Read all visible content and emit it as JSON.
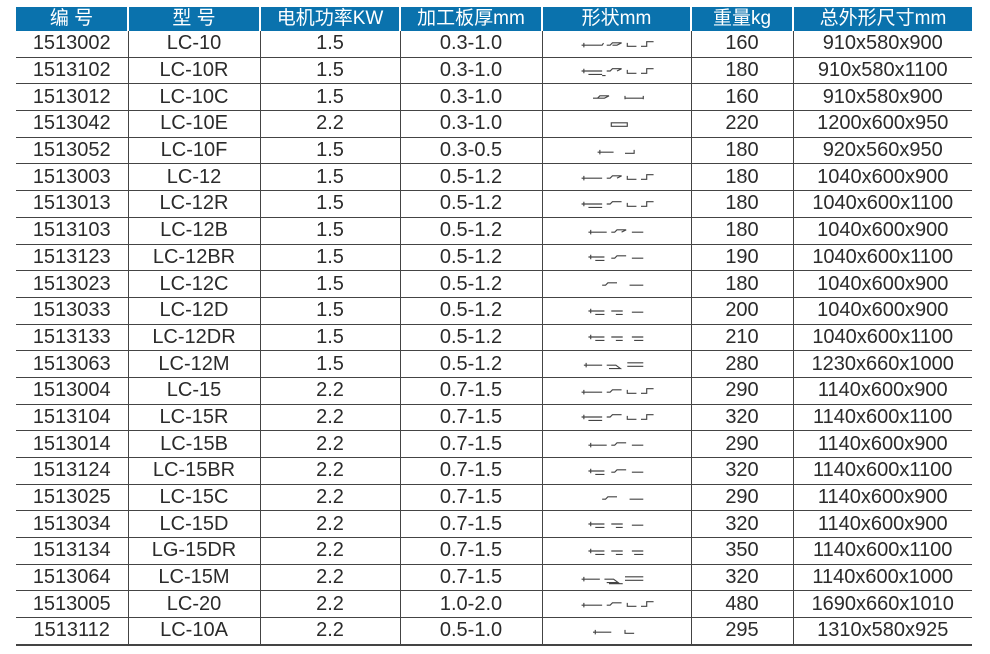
{
  "header_color": "#0a72ad",
  "columns": [
    "编 号",
    "型 号",
    "电机功率KW",
    "加工板厚mm",
    "形状mm",
    "重量kg",
    "总外形尺寸mm"
  ],
  "rows": [
    {
      "code": "1513002",
      "model": "LC-10",
      "power": "1.5",
      "thickness": "0.3-1.0",
      "shape": "profile-shapes-icon",
      "weight": "160",
      "size": "910x580x900"
    },
    {
      "code": "1513102",
      "model": "LC-10R",
      "power": "1.5",
      "thickness": "0.3-1.0",
      "shape": "profile-shapes-icon",
      "weight": "180",
      "size": "910x580x1100"
    },
    {
      "code": "1513012",
      "model": "LC-10C",
      "power": "1.5",
      "thickness": "0.3-1.0",
      "shape": "profile-shapes-icon",
      "weight": "160",
      "size": "910x580x900"
    },
    {
      "code": "1513042",
      "model": "LC-10E",
      "power": "2.2",
      "thickness": "0.3-1.0",
      "shape": "profile-shapes-icon",
      "weight": "220",
      "size": "1200x600x950"
    },
    {
      "code": "1513052",
      "model": "LC-10F",
      "power": "1.5",
      "thickness": "0.3-0.5",
      "shape": "profile-shapes-icon",
      "weight": "180",
      "size": "920x560x950"
    },
    {
      "code": "1513003",
      "model": "LC-12",
      "power": "1.5",
      "thickness": "0.5-1.2",
      "shape": "profile-shapes-icon",
      "weight": "180",
      "size": "1040x600x900"
    },
    {
      "code": "1513013",
      "model": "LC-12R",
      "power": "1.5",
      "thickness": "0.5-1.2",
      "shape": "profile-shapes-icon",
      "weight": "180",
      "size": "1040x600x1100"
    },
    {
      "code": "1513103",
      "model": "LC-12B",
      "power": "1.5",
      "thickness": "0.5-1.2",
      "shape": "profile-shapes-icon",
      "weight": "180",
      "size": "1040x600x900"
    },
    {
      "code": "1513123",
      "model": "LC-12BR",
      "power": "1.5",
      "thickness": "0.5-1.2",
      "shape": "profile-shapes-icon",
      "weight": "190",
      "size": "1040x600x1100"
    },
    {
      "code": "1513023",
      "model": "LC-12C",
      "power": "1.5",
      "thickness": "0.5-1.2",
      "shape": "profile-shapes-icon",
      "weight": "180",
      "size": "1040x600x900"
    },
    {
      "code": "1513033",
      "model": "LC-12D",
      "power": "1.5",
      "thickness": "0.5-1.2",
      "shape": "profile-shapes-icon",
      "weight": "200",
      "size": "1040x600x900"
    },
    {
      "code": "1513133",
      "model": "LC-12DR",
      "power": "1.5",
      "thickness": "0.5-1.2",
      "shape": "profile-shapes-icon",
      "weight": "210",
      "size": "1040x600x1100"
    },
    {
      "code": "1513063",
      "model": "LC-12M",
      "power": "1.5",
      "thickness": "0.5-1.2",
      "shape": "profile-shapes-icon",
      "weight": "280",
      "size": "1230x660x1000"
    },
    {
      "code": "1513004",
      "model": "LC-15",
      "power": "2.2",
      "thickness": "0.7-1.5",
      "shape": "profile-shapes-icon",
      "weight": "290",
      "size": "1140x600x900"
    },
    {
      "code": "1513104",
      "model": "LC-15R",
      "power": "2.2",
      "thickness": "0.7-1.5",
      "shape": "profile-shapes-icon",
      "weight": "320",
      "size": "1140x600x1100"
    },
    {
      "code": "1513014",
      "model": "LC-15B",
      "power": "2.2",
      "thickness": "0.7-1.5",
      "shape": "profile-shapes-icon",
      "weight": "290",
      "size": "1140x600x900"
    },
    {
      "code": "1513124",
      "model": "LC-15BR",
      "power": "2.2",
      "thickness": "0.7-1.5",
      "shape": "profile-shapes-icon",
      "weight": "320",
      "size": "1140x600x1100"
    },
    {
      "code": "1513025",
      "model": "LC-15C",
      "power": "2.2",
      "thickness": "0.7-1.5",
      "shape": "profile-shapes-icon",
      "weight": "290",
      "size": "1140x600x900"
    },
    {
      "code": "1513034",
      "model": "LC-15D",
      "power": "2.2",
      "thickness": "0.7-1.5",
      "shape": "profile-shapes-icon",
      "weight": "320",
      "size": "1140x600x900"
    },
    {
      "code": "1513134",
      "model": "LG-15DR",
      "power": "2.2",
      "thickness": "0.7-1.5",
      "shape": "profile-shapes-icon",
      "weight": "350",
      "size": "1140x600x1100"
    },
    {
      "code": "1513064",
      "model": "LC-15M",
      "power": "2.2",
      "thickness": "0.7-1.5",
      "shape": "profile-shapes-icon",
      "weight": "320",
      "size": "1140x600x1000"
    },
    {
      "code": "1513005",
      "model": "LC-20",
      "power": "2.2",
      "thickness": "1.0-2.0",
      "shape": "profile-shapes-icon",
      "weight": "480",
      "size": "1690x660x1010"
    },
    {
      "code": "1513112",
      "model": "LC-10A",
      "power": "2.2",
      "thickness": "0.5-1.0",
      "shape": "profile-shapes-icon",
      "weight": "295",
      "size": "1310x580x925"
    }
  ]
}
